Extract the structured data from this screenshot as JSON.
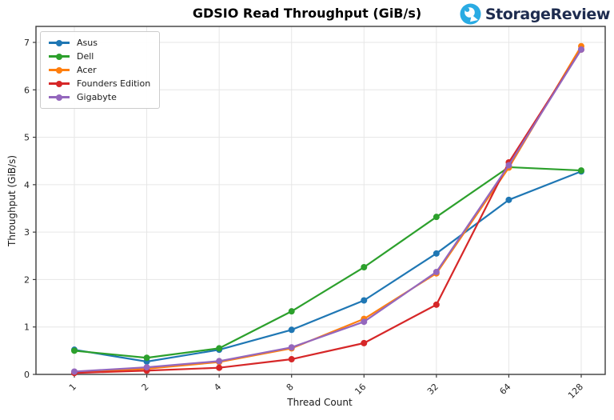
{
  "header": {
    "brand": "StorageReview",
    "brand_color": "#1e2c4f",
    "logo_blue": "#2aabe3"
  },
  "chart_data": {
    "type": "line",
    "title": "GDSIO Read Throughput (GiB/s)",
    "xlabel": "Thread Count",
    "ylabel": "Throughput (GiB/s)",
    "categories": [
      "1",
      "2",
      "4",
      "8",
      "16",
      "32",
      "64",
      "128"
    ],
    "y_ticks": [
      0,
      1,
      2,
      3,
      4,
      5,
      6,
      7
    ],
    "ylim": [
      0,
      7.35
    ],
    "grid": true,
    "legend_position": "upper-left",
    "marker": "circle",
    "series": [
      {
        "name": "Asus",
        "color": "#1f77b4",
        "values": [
          0.52,
          0.27,
          0.52,
          0.94,
          1.56,
          2.55,
          3.68,
          4.28
        ]
      },
      {
        "name": "Dell",
        "color": "#2ca02c",
        "values": [
          0.5,
          0.35,
          0.55,
          1.33,
          2.26,
          3.32,
          4.37,
          4.3
        ]
      },
      {
        "name": "Acer",
        "color": "#ff7f0e",
        "values": [
          0.05,
          0.12,
          0.26,
          0.55,
          1.17,
          2.13,
          4.36,
          6.92
        ]
      },
      {
        "name": "Founders Edition",
        "color": "#d62728",
        "values": [
          0.03,
          0.08,
          0.14,
          0.32,
          0.66,
          1.47,
          4.47,
          6.85
        ]
      },
      {
        "name": "Gigabyte",
        "color": "#9467bd",
        "values": [
          0.06,
          0.15,
          0.28,
          0.57,
          1.11,
          2.16,
          4.41,
          6.85
        ]
      }
    ]
  }
}
